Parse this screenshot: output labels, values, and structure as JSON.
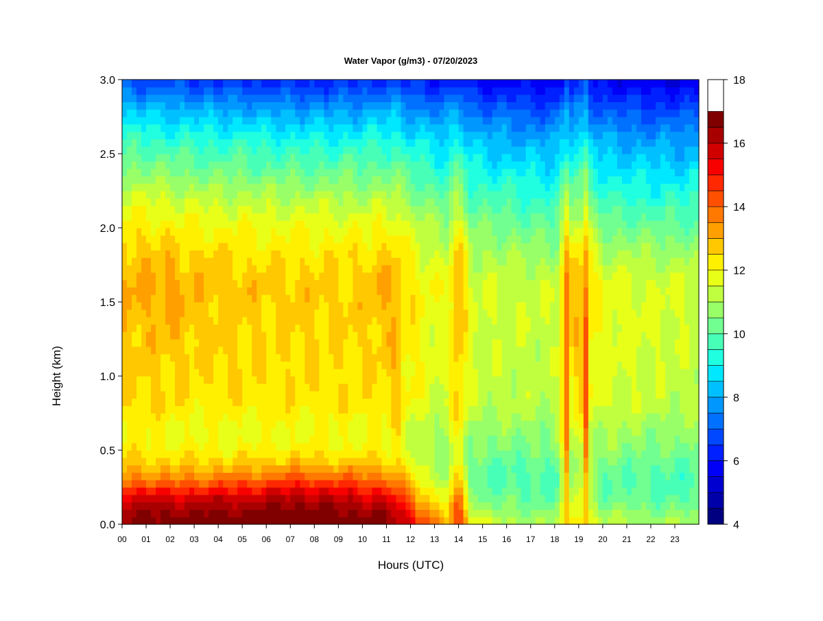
{
  "chart_data": {
    "type": "heatmap",
    "title": "Water Vapor (g/m3) - 07/20/2023",
    "xlabel": "Hours (UTC)",
    "ylabel": "Height (km)",
    "xlim": [
      0,
      24
    ],
    "ylim": [
      0,
      3.0
    ],
    "x_tick_labels": [
      "00",
      "01",
      "02",
      "03",
      "04",
      "05",
      "06",
      "07",
      "08",
      "09",
      "10",
      "11",
      "12",
      "13",
      "14",
      "15",
      "16",
      "17",
      "18",
      "19",
      "20",
      "21",
      "22",
      "23"
    ],
    "y_tick_values": [
      0.0,
      0.5,
      1.0,
      1.5,
      2.0,
      2.5,
      3.0
    ],
    "y_tick_labels": [
      "0.0",
      "0.5",
      "1.0",
      "1.5",
      "2.0",
      "2.5",
      "3.0"
    ],
    "colorbar": {
      "range": [
        4,
        18
      ],
      "step": 0.5,
      "tick_values": [
        4,
        6,
        8,
        10,
        12,
        14,
        16,
        18
      ],
      "tick_labels": [
        "4",
        "6",
        "8",
        "10",
        "12",
        "14",
        "16",
        "18"
      ],
      "colors": [
        "#000080",
        "#0000a8",
        "#0000d0",
        "#0000f8",
        "#0020ff",
        "#0048ff",
        "#0070ff",
        "#0098ff",
        "#00c0ff",
        "#00e8ff",
        "#20ffe0",
        "#48ffb8",
        "#70ff90",
        "#98ff68",
        "#c0ff40",
        "#e8ff18",
        "#fff000",
        "#ffc800",
        "#ffa000",
        "#ff7800",
        "#ff5000",
        "#ff2800",
        "#f80000",
        "#d00000",
        "#a80000",
        "#800000"
      ]
    },
    "grid": false,
    "heights_km": [
      0.0,
      0.05,
      0.1,
      0.15,
      0.2,
      0.25,
      0.3,
      0.35,
      0.4,
      0.45,
      0.5,
      0.6,
      0.7,
      0.8,
      1.0,
      1.2,
      1.4,
      1.6,
      1.8,
      2.0,
      2.2,
      2.4,
      2.6,
      2.8,
      3.0
    ],
    "times_h": [
      0,
      1,
      2,
      3,
      4,
      5,
      6,
      7,
      8,
      9,
      10,
      11,
      11.5,
      12,
      12.5,
      13,
      13.5,
      14,
      14.5,
      15,
      16,
      17,
      18,
      19,
      20,
      21,
      22,
      23,
      23.9
    ],
    "values_g_m3": [
      [
        16.5,
        16.4,
        16.2,
        15.8,
        15.2,
        14.5,
        13.8,
        13.2,
        12.8,
        12.6,
        12.3,
        12.0,
        12.2,
        12.5,
        12.6,
        12.7,
        12.9,
        13.1,
        12.8,
        12.3,
        11.5,
        10.5,
        9.6,
        8.4,
        6.8
      ],
      [
        16.8,
        16.6,
        16.4,
        16.0,
        15.4,
        14.6,
        13.8,
        13.2,
        12.8,
        12.5,
        12.2,
        12.0,
        12.2,
        12.4,
        12.6,
        12.7,
        12.9,
        13.1,
        12.8,
        12.3,
        11.5,
        10.5,
        9.5,
        8.3,
        6.7
      ],
      [
        16.8,
        16.6,
        16.3,
        15.9,
        15.3,
        14.5,
        13.7,
        13.1,
        12.7,
        12.5,
        12.2,
        11.9,
        12.1,
        12.4,
        12.6,
        12.8,
        13.0,
        13.2,
        12.8,
        12.2,
        11.4,
        10.4,
        9.4,
        8.2,
        6.6
      ],
      [
        16.9,
        16.7,
        16.4,
        16.0,
        15.4,
        14.6,
        13.8,
        13.2,
        12.7,
        12.4,
        12.1,
        11.8,
        12.0,
        12.3,
        12.5,
        12.6,
        12.8,
        12.9,
        12.6,
        12.1,
        11.3,
        10.3,
        9.4,
        8.1,
        6.5
      ],
      [
        16.9,
        16.7,
        16.4,
        16.0,
        15.4,
        14.6,
        13.8,
        13.2,
        12.7,
        12.4,
        12.1,
        11.8,
        12.0,
        12.3,
        12.5,
        12.6,
        12.7,
        12.9,
        12.6,
        12.0,
        11.2,
        10.2,
        9.3,
        8.0,
        6.4
      ],
      [
        17.0,
        16.8,
        16.5,
        16.1,
        15.5,
        14.8,
        14.0,
        13.3,
        12.8,
        12.4,
        12.1,
        11.8,
        12.0,
        12.3,
        12.4,
        12.5,
        12.6,
        12.8,
        12.5,
        12.0,
        11.2,
        10.2,
        9.3,
        8.0,
        6.4
      ],
      [
        17.1,
        16.9,
        16.6,
        16.3,
        15.7,
        15.0,
        14.2,
        13.5,
        12.9,
        12.5,
        12.1,
        11.8,
        12.0,
        12.3,
        12.4,
        12.5,
        12.6,
        12.7,
        12.4,
        11.9,
        11.1,
        10.1,
        9.2,
        7.9,
        6.3
      ],
      [
        17.2,
        17.0,
        16.8,
        16.4,
        15.9,
        15.2,
        14.4,
        13.6,
        13.0,
        12.6,
        12.2,
        11.9,
        12.0,
        12.3,
        12.4,
        12.5,
        12.6,
        12.7,
        12.4,
        11.9,
        11.1,
        10.1,
        9.1,
        7.8,
        6.2
      ],
      [
        17.1,
        16.9,
        16.7,
        16.3,
        15.8,
        15.1,
        14.3,
        13.6,
        13.0,
        12.6,
        12.2,
        11.9,
        12.0,
        12.3,
        12.4,
        12.5,
        12.6,
        12.7,
        12.4,
        11.9,
        11.1,
        10.1,
        9.1,
        7.8,
        6.2
      ],
      [
        17.0,
        16.8,
        16.6,
        16.2,
        15.7,
        15.0,
        14.2,
        13.5,
        12.9,
        12.5,
        12.2,
        11.9,
        12.0,
        12.3,
        12.4,
        12.5,
        12.6,
        12.7,
        12.4,
        11.9,
        11.1,
        10.1,
        9.1,
        7.8,
        6.2
      ],
      [
        16.9,
        16.7,
        16.4,
        16.0,
        15.5,
        14.8,
        14.0,
        13.4,
        12.9,
        12.5,
        12.2,
        11.9,
        12.0,
        12.3,
        12.4,
        12.5,
        12.6,
        12.7,
        12.4,
        11.9,
        11.1,
        10.1,
        9.2,
        7.9,
        6.3
      ],
      [
        16.7,
        16.5,
        16.2,
        15.8,
        15.2,
        14.5,
        13.8,
        13.2,
        12.7,
        12.4,
        12.1,
        11.9,
        12.1,
        12.4,
        12.5,
        12.7,
        12.9,
        13.2,
        12.7,
        12.1,
        11.2,
        10.2,
        9.3,
        8.0,
        6.4
      ],
      [
        16.2,
        16.0,
        15.6,
        15.1,
        14.5,
        13.9,
        13.3,
        12.8,
        12.4,
        12.1,
        11.9,
        11.8,
        12.0,
        12.3,
        12.4,
        12.5,
        12.6,
        12.7,
        12.3,
        11.8,
        11.0,
        10.0,
        9.1,
        7.8,
        6.3
      ],
      [
        15.5,
        15.2,
        14.8,
        14.2,
        13.6,
        13.1,
        12.6,
        12.2,
        11.9,
        11.7,
        11.5,
        11.4,
        11.7,
        12.0,
        12.1,
        12.2,
        12.3,
        12.4,
        12.0,
        11.5,
        10.7,
        9.8,
        8.9,
        7.7,
        6.2
      ],
      [
        14.5,
        14.1,
        13.6,
        13.1,
        12.6,
        12.2,
        11.9,
        11.6,
        11.4,
        11.2,
        11.1,
        11.1,
        11.4,
        11.7,
        11.8,
        11.9,
        12.0,
        12.1,
        11.7,
        11.2,
        10.4,
        9.6,
        8.8,
        7.6,
        6.1
      ],
      [
        13.6,
        13.2,
        12.8,
        12.4,
        12.0,
        11.7,
        11.4,
        11.2,
        11.0,
        10.9,
        10.8,
        10.9,
        11.2,
        11.5,
        11.6,
        11.7,
        11.8,
        11.9,
        11.5,
        11.0,
        10.2,
        9.4,
        8.6,
        7.5,
        6.0
      ],
      [
        13.0,
        12.7,
        12.4,
        12.1,
        11.8,
        11.5,
        11.2,
        11.0,
        10.9,
        10.8,
        10.7,
        10.8,
        11.1,
        11.4,
        11.5,
        11.6,
        11.7,
        11.8,
        11.4,
        10.9,
        10.1,
        9.3,
        8.5,
        7.4,
        6.0
      ],
      [
        14.8,
        14.6,
        14.3,
        14.0,
        13.6,
        13.2,
        12.8,
        12.5,
        12.2,
        12.1,
        12.0,
        12.2,
        12.5,
        12.8,
        13.0,
        13.1,
        13.2,
        13.3,
        12.8,
        12.0,
        11.0,
        10.1,
        9.2,
        7.9,
        6.4
      ],
      [
        12.4,
        12.0,
        11.6,
        11.2,
        10.9,
        10.6,
        10.4,
        10.3,
        10.3,
        10.4,
        10.5,
        10.7,
        11.0,
        11.3,
        11.4,
        11.5,
        11.6,
        11.6,
        11.2,
        10.7,
        9.9,
        9.1,
        8.3,
        7.2,
        5.8
      ],
      [
        11.5,
        11.2,
        10.8,
        10.5,
        10.3,
        10.1,
        10.0,
        10.0,
        10.1,
        10.2,
        10.4,
        10.6,
        10.9,
        11.2,
        11.3,
        11.4,
        11.5,
        11.5,
        11.1,
        10.5,
        9.8,
        9.0,
        8.2,
        7.1,
        5.8
      ],
      [
        11.1,
        10.9,
        10.6,
        10.3,
        10.1,
        10.0,
        9.9,
        9.9,
        10.0,
        10.2,
        10.4,
        10.6,
        10.9,
        11.2,
        11.3,
        11.3,
        11.4,
        11.4,
        11.0,
        10.4,
        9.7,
        8.9,
        8.1,
        7.0,
        5.7
      ],
      [
        11.0,
        10.8,
        10.5,
        10.2,
        10.0,
        9.9,
        9.9,
        9.9,
        10.0,
        10.2,
        10.4,
        10.6,
        10.9,
        11.1,
        11.2,
        11.3,
        11.4,
        11.4,
        10.9,
        10.2,
        9.5,
        8.8,
        8.0,
        6.9,
        5.6
      ],
      [
        11.0,
        10.8,
        10.5,
        10.2,
        10.0,
        9.9,
        9.9,
        9.9,
        10.0,
        10.2,
        10.4,
        10.6,
        10.9,
        11.1,
        11.2,
        11.3,
        11.4,
        11.4,
        10.9,
        10.2,
        9.5,
        8.7,
        7.9,
        6.8,
        5.6
      ],
      [
        12.6,
        12.4,
        12.2,
        12.0,
        11.8,
        11.6,
        11.4,
        11.3,
        11.3,
        11.4,
        11.6,
        11.8,
        12.1,
        12.4,
        12.6,
        12.8,
        13.0,
        13.1,
        12.7,
        11.8,
        10.8,
        9.8,
        8.8,
        7.5,
        6.1
      ],
      [
        11.2,
        11.0,
        10.7,
        10.4,
        10.2,
        10.1,
        10.1,
        10.2,
        10.3,
        10.5,
        10.7,
        10.9,
        11.2,
        11.5,
        11.6,
        11.7,
        11.8,
        11.8,
        11.2,
        10.4,
        9.6,
        8.8,
        8.0,
        6.9,
        5.7
      ],
      [
        11.1,
        10.9,
        10.6,
        10.3,
        10.1,
        10.0,
        10.0,
        10.1,
        10.2,
        10.4,
        10.6,
        10.8,
        11.1,
        11.4,
        11.5,
        11.6,
        11.7,
        11.7,
        11.1,
        10.3,
        9.5,
        8.7,
        7.9,
        6.8,
        5.6
      ],
      [
        11.0,
        10.8,
        10.5,
        10.2,
        10.0,
        9.9,
        9.9,
        10.0,
        10.1,
        10.3,
        10.5,
        10.7,
        11.0,
        11.3,
        11.4,
        11.5,
        11.6,
        11.6,
        11.0,
        10.2,
        9.4,
        8.6,
        7.8,
        6.7,
        5.5
      ],
      [
        10.9,
        10.7,
        10.4,
        10.1,
        9.9,
        9.8,
        9.8,
        9.9,
        10.0,
        10.2,
        10.4,
        10.6,
        10.9,
        11.2,
        11.3,
        11.4,
        11.5,
        11.5,
        11.0,
        10.2,
        9.4,
        8.6,
        7.8,
        6.7,
        5.5
      ],
      [
        10.9,
        10.7,
        10.4,
        10.1,
        9.9,
        9.8,
        9.8,
        9.9,
        10.0,
        10.2,
        10.4,
        10.6,
        10.9,
        11.2,
        11.3,
        11.4,
        11.5,
        11.5,
        11.0,
        10.2,
        9.4,
        8.6,
        7.8,
        6.7,
        5.5
      ]
    ],
    "narrow_plumes": [
      {
        "center_h": 11.4,
        "width_h": 0.12,
        "peak_g_m3": 14.6
      },
      {
        "center_h": 14.0,
        "width_h": 0.1,
        "peak_g_m3": 15.4
      },
      {
        "center_h": 18.45,
        "width_h": 0.2,
        "peak_g_m3": 14.8
      },
      {
        "center_h": 19.35,
        "width_h": 0.1,
        "peak_g_m3": 16.2
      }
    ]
  }
}
